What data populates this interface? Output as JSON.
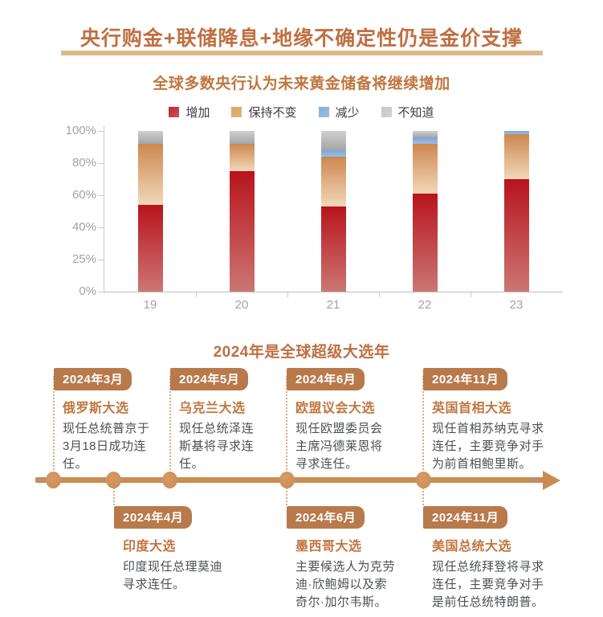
{
  "banner": {
    "title": "央行购金+联储降息+地缘不确定性仍是金价支撑"
  },
  "chart_data": {
    "type": "bar",
    "stacked": true,
    "title": "全球多数央行认为未来黄金储备将继续增加",
    "categories": [
      "19",
      "20",
      "21",
      "22",
      "23"
    ],
    "series": [
      {
        "name": "增加",
        "values": [
          54,
          75,
          53,
          61,
          70
        ]
      },
      {
        "name": "保持不变",
        "values": [
          38,
          17,
          31,
          31,
          28
        ]
      },
      {
        "name": "减少",
        "values": [
          0,
          0,
          4,
          4,
          2
        ]
      },
      {
        "name": "不知道",
        "values": [
          8,
          8,
          12,
          4,
          0
        ]
      }
    ],
    "y_ticks": [
      "100%",
      "80%",
      "60%",
      "40%",
      "25%",
      "0%"
    ],
    "ylim": [
      0,
      100
    ],
    "unit": "percent",
    "grid": false,
    "legend_position": "top"
  },
  "legend": {
    "items": [
      {
        "label": "增加",
        "color": "#c2262c"
      },
      {
        "label": "保持不变",
        "color": "#dfa05f"
      },
      {
        "label": "减少",
        "color": "#85acdc"
      },
      {
        "label": "不知道",
        "color": "#c7c7c7"
      }
    ]
  },
  "series_gradients": {
    "增加": [
      "#b8141d",
      "#cb7673"
    ],
    "保持不变": [
      "#cd8750",
      "#f1d8b9"
    ],
    "减少": [
      "#7da5d9",
      "#9bbde5"
    ],
    "不知道": [
      "#cfcfcf",
      "#a6a6a6"
    ]
  },
  "timeline": {
    "title": "2024年是全球超级大选年",
    "events_top": [
      {
        "date": "2024年3月",
        "title": "俄罗斯大选",
        "desc": "现任总统普京于3月18日成功连任。"
      },
      {
        "date": "2024年5月",
        "title": "乌克兰大选",
        "desc": "现任总统泽连斯基将寻求连任。"
      },
      {
        "date": "2024年6月",
        "title": "欧盟议会大选",
        "desc": "现任欧盟委员会主席冯德莱恩将寻求连任。"
      },
      {
        "date": "2024年11月",
        "title": "英国首相大选",
        "desc": "现任首相苏纳克寻求连任，主要竞争对手为前首相鲍里斯。"
      }
    ],
    "events_bottom": [
      {
        "date": "2024年4月",
        "title": "印度大选",
        "desc": "印度现任总理莫迪寻求连任。"
      },
      {
        "date": "2024年6月",
        "title": "墨西哥大选",
        "desc": "主要候选人为克劳迪·欣鲍姆以及索奇尔·加尔韦斯。"
      },
      {
        "date": "2024年11月",
        "title": "美国总统大选",
        "desc": "现任总统拜登将寻求连任，主要竞争对手是前任总统特朗普。"
      }
    ]
  },
  "colors": {
    "accent_brown": "#bf6f41",
    "underline_tan": "#dcb88e",
    "chip_bg": "#b87a4b",
    "event_title": "#c0763f",
    "body_text": "#4c4f54",
    "timeline_line": "#c98c57",
    "dotted_line": "#dcab7d",
    "axis_text": "#a3a3a3",
    "axis_line": "#c9c9c9",
    "baseline": "#bdbdbd"
  }
}
